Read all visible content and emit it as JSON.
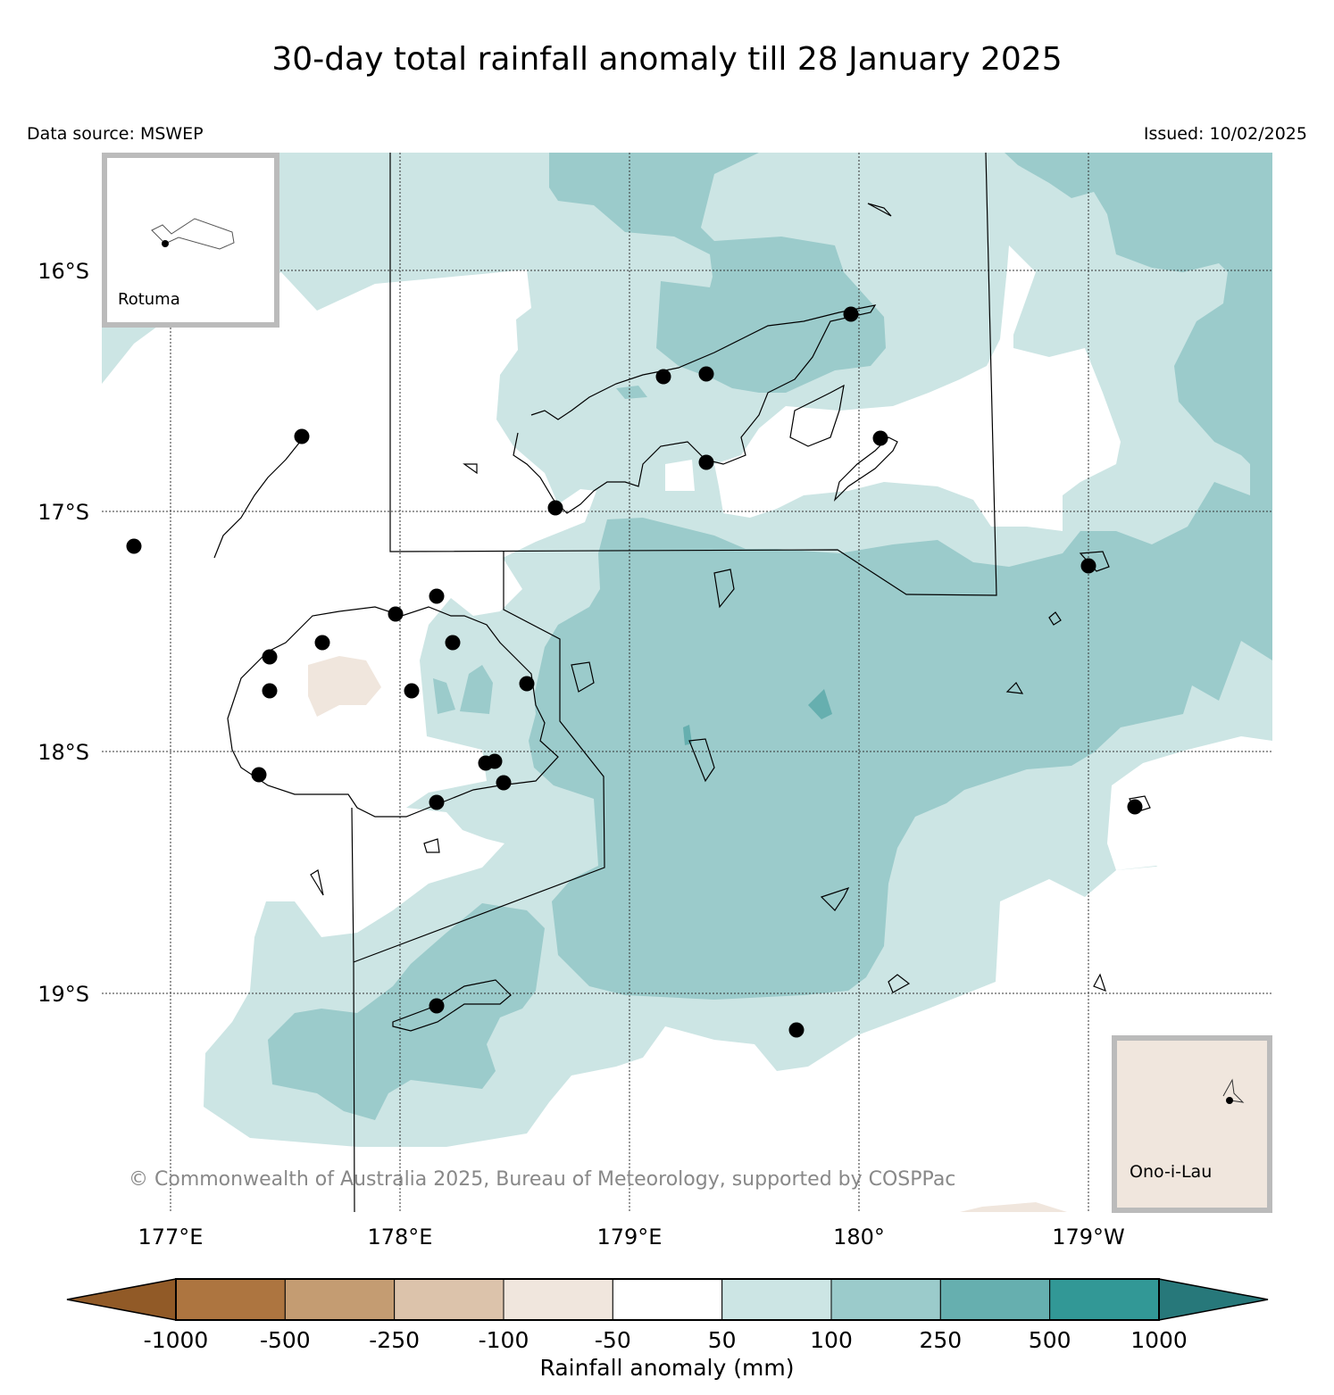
{
  "title": "30-day total rainfall anomaly till 28 January 2025",
  "data_source": "Data source: MSWEP",
  "issued": "Issued: 10/02/2025",
  "copyright": "© Commonwealth of Australia 2025, Bureau of Meteorology, supported by COSPPac",
  "axes": {
    "lat_labels": [
      "16°S",
      "17°S",
      "18°S",
      "19°S"
    ],
    "lon_labels": [
      "177°E",
      "178°E",
      "179°E",
      "180°",
      "179°W"
    ]
  },
  "insets": {
    "rotuma": "Rotuma",
    "ono": "Ono-i-Lau"
  },
  "colorbar": {
    "label": "Rainfall anomaly (mm)",
    "ticks": [
      "-1000",
      "-500",
      "-250",
      "-100",
      "-50",
      "50",
      "100",
      "250",
      "500",
      "1000"
    ],
    "colors": {
      "below_min": "#915A27",
      "bins": [
        "#AD7540",
        "#C49C72",
        "#DCC3AB",
        "#F0E6DD",
        "#FFFFFF",
        "#CCE5E4",
        "#9BCBCB",
        "#66AFAF",
        "#329896"
      ],
      "above_max": "#27787A"
    }
  }
}
